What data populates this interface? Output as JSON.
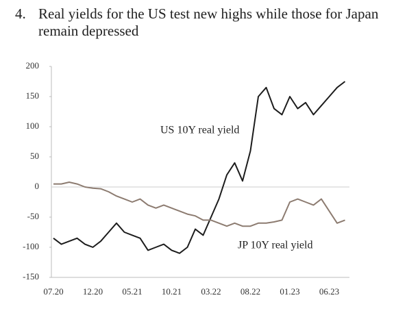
{
  "chart_data": {
    "type": "line",
    "number": "4.",
    "title": "Real yields for the US test new highs while those for Japan remain depressed",
    "categories": [
      "07.20",
      null,
      null,
      null,
      null,
      "12.20",
      null,
      null,
      null,
      null,
      "05.21",
      null,
      null,
      null,
      null,
      "10.21",
      null,
      null,
      null,
      null,
      "03.22",
      null,
      null,
      null,
      null,
      "08.22",
      null,
      null,
      null,
      null,
      "01.23",
      null,
      null,
      null,
      null,
      "06.23",
      null,
      null
    ],
    "series": [
      {
        "name": "US 10Y real yield",
        "color": "#1c1c1c",
        "values": [
          -85,
          -95,
          -90,
          -85,
          -95,
          -100,
          -90,
          -75,
          -60,
          -75,
          -80,
          -85,
          -105,
          -100,
          -95,
          -105,
          -110,
          -100,
          -70,
          -80,
          -50,
          -20,
          20,
          40,
          10,
          60,
          150,
          165,
          130,
          120,
          150,
          130,
          140,
          120,
          135,
          150,
          165,
          175
        ]
      },
      {
        "name": "JP 10Y real yield",
        "color": "#8c7b70",
        "values": [
          5,
          5,
          8,
          5,
          0,
          -2,
          -3,
          -8,
          -15,
          -20,
          -25,
          -20,
          -30,
          -35,
          -30,
          -35,
          -40,
          -45,
          -48,
          -55,
          -55,
          -60,
          -65,
          -60,
          -65,
          -65,
          -60,
          -60,
          -58,
          -55,
          -25,
          -20,
          -25,
          -30,
          -20,
          -40,
          -60,
          -55
        ]
      }
    ],
    "ylim": [
      -150,
      200
    ],
    "yticks": [
      -150,
      -100,
      -50,
      0,
      50,
      100,
      150,
      200
    ]
  }
}
